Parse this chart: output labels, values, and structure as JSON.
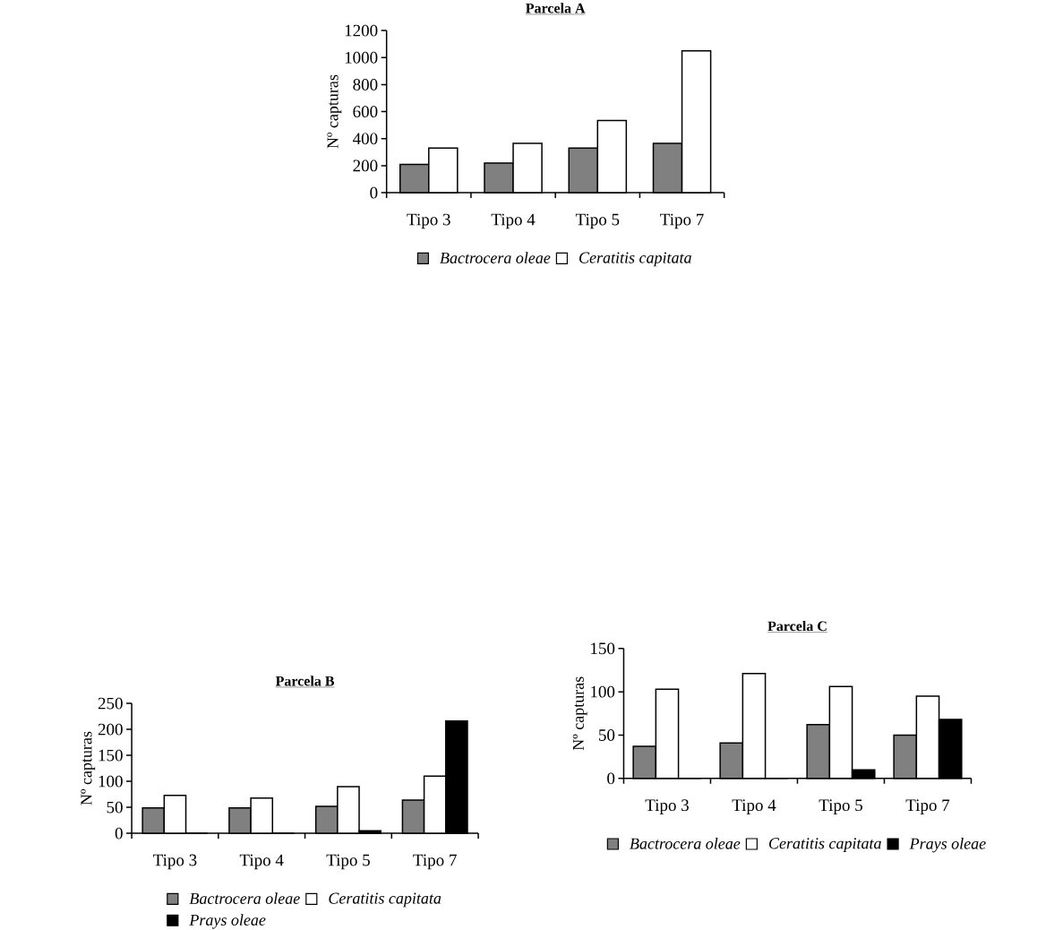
{
  "chart_data": [
    {
      "type": "bar",
      "title": "Parcela A",
      "ylabel": "Nº capturas",
      "categories": [
        "Tipo 3",
        "Tipo 4",
        "Tipo 5",
        "Tipo 7"
      ],
      "series": [
        {
          "name": "Bactrocera oleae",
          "color": "#808080",
          "values": [
            210,
            220,
            330,
            365
          ]
        },
        {
          "name": "Ceratitis capitata",
          "color": "#ffffff",
          "values": [
            330,
            365,
            535,
            1050
          ]
        }
      ],
      "ylim": [
        0,
        1200
      ],
      "yticks": [
        0,
        200,
        400,
        600,
        800,
        1000,
        1200
      ],
      "legend": "bottom"
    },
    {
      "type": "bar",
      "title": "Parcela B",
      "ylabel": "Nº capturas",
      "categories": [
        "Tipo 3",
        "Tipo 4",
        "Tipo 5",
        "Tipo 7"
      ],
      "series": [
        {
          "name": "Bactrocera oleae",
          "color": "#808080",
          "values": [
            49,
            49,
            52,
            64
          ]
        },
        {
          "name": "Ceratitis capitata",
          "color": "#ffffff",
          "values": [
            73,
            68,
            90,
            110
          ]
        },
        {
          "name": "Prays oleae",
          "color": "#000000",
          "values": [
            0,
            0,
            5,
            216
          ]
        }
      ],
      "ylim": [
        0,
        250
      ],
      "yticks": [
        0,
        50,
        100,
        150,
        200,
        250
      ],
      "legend": "bottom"
    },
    {
      "type": "bar",
      "title": "Parcela C",
      "ylabel": "Nº capturas",
      "categories": [
        "Tipo 3",
        "Tipo 4",
        "Tipo 5",
        "Tipo 7"
      ],
      "series": [
        {
          "name": "Bactrocera oleae",
          "color": "#808080",
          "values": [
            37,
            41,
            62,
            50
          ]
        },
        {
          "name": "Ceratitis capitata",
          "color": "#ffffff",
          "values": [
            103,
            121,
            106,
            95
          ]
        },
        {
          "name": "Prays oleae",
          "color": "#000000",
          "values": [
            0,
            0,
            10,
            68
          ]
        }
      ],
      "ylim": [
        0,
        150
      ],
      "yticks": [
        0,
        50,
        100,
        150
      ],
      "legend": "bottom"
    }
  ]
}
